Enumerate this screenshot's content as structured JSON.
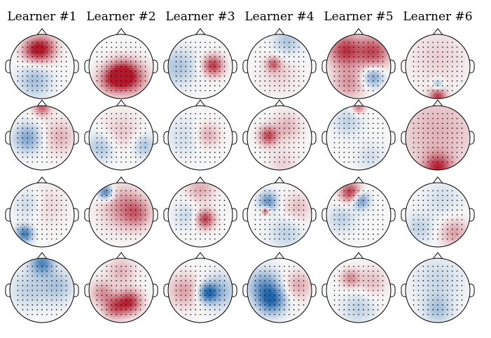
{
  "figure": {
    "column_titles": [
      "Learner #1",
      "Learner #2",
      "Learner #3",
      "Learner #4",
      "Learner #5",
      "Learner #6"
    ],
    "rows": 4,
    "colormap": {
      "negative": "#2166ac",
      "neutral": "#f7f7f7",
      "positive": "#b2182b"
    },
    "maps": [
      [
        {
          "blobs": [
            {
              "a": 0.05,
              "d": 0.55,
              "v": 1.0,
              "s": 0.28
            },
            {
              "a": -0.55,
              "d": 0.6,
              "v": 0.6,
              "s": 0.25
            },
            {
              "a": 3.6,
              "d": 0.5,
              "v": -0.45,
              "s": 0.35
            }
          ]
        },
        {
          "blobs": [
            {
              "a": 3.14,
              "d": 0.25,
              "v": 1.0,
              "s": 0.3
            },
            {
              "a": 2.4,
              "d": 0.5,
              "v": 0.7,
              "s": 0.35
            },
            {
              "a": -2.5,
              "d": 0.55,
              "v": 0.6,
              "s": 0.3
            }
          ]
        },
        {
          "blobs": [
            {
              "a": 1.5,
              "d": 0.4,
              "v": 1.0,
              "s": 0.22
            },
            {
              "a": -1.6,
              "d": 0.7,
              "v": -0.4,
              "s": 0.4
            }
          ]
        },
        {
          "blobs": [
            {
              "a": -1.2,
              "d": 0.2,
              "v": 0.7,
              "s": 0.15
            },
            {
              "a": 0.3,
              "d": 0.8,
              "v": -0.4,
              "s": 0.3
            },
            {
              "a": 3.14,
              "d": 0.2,
              "v": 0.2,
              "s": 0.4
            }
          ]
        },
        {
          "blobs": [
            {
              "a": -0.7,
              "d": 0.65,
              "v": 1.0,
              "s": 0.35
            },
            {
              "a": 0.8,
              "d": 0.65,
              "v": 0.9,
              "s": 0.35
            },
            {
              "a": 2.2,
              "d": 0.55,
              "v": -0.7,
              "s": 0.22
            },
            {
              "a": -2.6,
              "d": 0.6,
              "v": 0.5,
              "s": 0.35
            }
          ]
        },
        {
          "blobs": [
            {
              "a": 3.14,
              "d": 0.95,
              "v": 1.0,
              "s": 0.18
            },
            {
              "a": 3.14,
              "d": 0.55,
              "v": -0.5,
              "s": 0.12
            },
            {
              "a": 0,
              "d": 0.3,
              "v": 0.2,
              "s": 0.6
            }
          ]
        }
      ],
      [
        {
          "blobs": [
            {
              "a": 0.0,
              "d": 0.95,
              "v": 0.8,
              "s": 0.18
            },
            {
              "a": -1.6,
              "d": 0.45,
              "v": -0.65,
              "s": 0.3
            },
            {
              "a": 1.5,
              "d": 0.55,
              "v": 0.35,
              "s": 0.35
            }
          ]
        },
        {
          "blobs": [
            {
              "a": 0,
              "d": 0.2,
              "v": 0.25,
              "s": 0.4
            },
            {
              "a": -2.0,
              "d": 0.7,
              "v": -0.4,
              "s": 0.3
            },
            {
              "a": 1.9,
              "d": 0.75,
              "v": -0.4,
              "s": 0.25
            }
          ]
        },
        {
          "blobs": [
            {
              "a": 1.2,
              "d": 0.25,
              "v": 0.4,
              "s": 0.25
            },
            {
              "a": -1.5,
              "d": 0.5,
              "v": -0.2,
              "s": 0.4
            }
          ]
        },
        {
          "blobs": [
            {
              "a": -1.4,
              "d": 0.35,
              "v": 0.9,
              "s": 0.2
            },
            {
              "a": 0.6,
              "d": 0.4,
              "v": 0.35,
              "s": 0.3
            },
            {
              "a": 3.0,
              "d": 0.8,
              "v": 0.2,
              "s": 0.3
            }
          ]
        },
        {
          "blobs": [
            {
              "a": 0.0,
              "d": 0.95,
              "v": 0.7,
              "s": 0.14
            },
            {
              "a": -0.6,
              "d": 0.6,
              "v": -0.3,
              "s": 0.3
            },
            {
              "a": 2.6,
              "d": 0.7,
              "v": -0.2,
              "s": 0.3
            }
          ]
        },
        {
          "blobs": [
            {
              "a": 3.14,
              "d": 0.95,
              "v": 1.0,
              "s": 0.3
            },
            {
              "a": 0,
              "d": 0.2,
              "v": 0.35,
              "s": 0.9
            }
          ]
        }
      ],
      [
        {
          "blobs": [
            {
              "a": -2.4,
              "d": 0.8,
              "v": -1.0,
              "s": 0.18
            },
            {
              "a": 0.4,
              "d": 0.3,
              "v": 0.2,
              "s": 0.4
            },
            {
              "a": -0.9,
              "d": 0.5,
              "v": -0.3,
              "s": 0.3
            }
          ]
        },
        {
          "blobs": [
            {
              "a": -0.6,
              "d": 0.85,
              "v": -1.0,
              "s": 0.16
            },
            {
              "a": 0.3,
              "d": 0.25,
              "v": 0.55,
              "s": 0.45
            },
            {
              "a": 1.5,
              "d": 0.5,
              "v": 0.5,
              "s": 0.3
            }
          ]
        },
        {
          "blobs": [
            {
              "a": 2.3,
              "d": 0.2,
              "v": 1.0,
              "s": 0.2
            },
            {
              "a": 0,
              "d": 0.8,
              "v": 0.4,
              "s": 0.3
            },
            {
              "a": -1.6,
              "d": 0.4,
              "v": -0.25,
              "s": 0.3
            }
          ]
        },
        {
          "blobs": [
            {
              "a": -1.3,
              "d": 0.45,
              "v": 1.0,
              "s": 0.08
            },
            {
              "a": -0.7,
              "d": 0.55,
              "v": -0.8,
              "s": 0.2
            },
            {
              "a": 1.2,
              "d": 0.6,
              "v": 0.3,
              "s": 0.3
            },
            {
              "a": 2.8,
              "d": 0.6,
              "v": -0.3,
              "s": 0.35
            }
          ]
        },
        {
          "blobs": [
            {
              "a": -0.35,
              "d": 0.75,
              "v": 1.0,
              "s": 0.22
            },
            {
              "a": 0.15,
              "d": 0.45,
              "v": -0.8,
              "s": 0.18
            },
            {
              "a": -1.8,
              "d": 0.55,
              "v": -0.3,
              "s": 0.3
            }
          ]
        },
        {
          "blobs": [
            {
              "a": 2.4,
              "d": 0.75,
              "v": 0.45,
              "s": 0.3
            },
            {
              "a": -2.2,
              "d": 0.7,
              "v": -0.3,
              "s": 0.3
            },
            {
              "a": 0.3,
              "d": 0.5,
              "v": -0.2,
              "s": 0.4
            }
          ]
        }
      ],
      [
        {
          "blobs": [
            {
              "a": 0.0,
              "d": 0.85,
              "v": -0.9,
              "s": 0.25
            },
            {
              "a": 1.3,
              "d": 0.5,
              "v": -0.4,
              "s": 0.35
            },
            {
              "a": -1.5,
              "d": 0.4,
              "v": -0.3,
              "s": 0.4
            }
          ]
        },
        {
          "blobs": [
            {
              "a": 2.5,
              "d": 0.45,
              "v": 1.0,
              "s": 0.25
            },
            {
              "a": 3.5,
              "d": 0.55,
              "v": 0.8,
              "s": 0.25
            },
            {
              "a": 0,
              "d": 0.6,
              "v": 0.35,
              "s": 0.3
            },
            {
              "a": -1.7,
              "d": 0.6,
              "v": 0.5,
              "s": 0.25
            }
          ]
        },
        {
          "blobs": [
            {
              "a": 1.9,
              "d": 0.25,
              "v": -1.0,
              "s": 0.2
            },
            {
              "a": 1.6,
              "d": 0.6,
              "v": -0.5,
              "s": 0.35
            },
            {
              "a": -1.6,
              "d": 0.5,
              "v": 0.45,
              "s": 0.35
            }
          ]
        },
        {
          "blobs": [
            {
              "a": 3.8,
              "d": 0.4,
              "v": -1.0,
              "s": 0.3
            },
            {
              "a": 5.0,
              "d": 0.5,
              "v": -0.7,
              "s": 0.35
            },
            {
              "a": 1.3,
              "d": 0.6,
              "v": 0.4,
              "s": 0.3
            }
          ]
        },
        {
          "blobs": [
            {
              "a": -0.6,
              "d": 0.45,
              "v": 0.55,
              "s": 0.2
            },
            {
              "a": 1.0,
              "d": 0.5,
              "v": 0.3,
              "s": 0.3
            },
            {
              "a": 3.14,
              "d": 0.55,
              "v": -0.3,
              "s": 0.35
            }
          ]
        },
        {
          "blobs": [
            {
              "a": 3.14,
              "d": 0.6,
              "v": -0.4,
              "s": 0.3
            },
            {
              "a": 0,
              "d": 0.3,
              "v": -0.25,
              "s": 0.5
            }
          ]
        }
      ]
    ]
  }
}
